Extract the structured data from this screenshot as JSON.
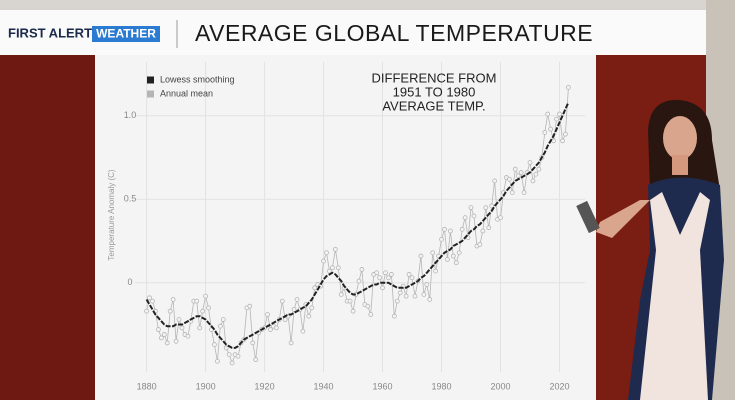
{
  "logo": {
    "first": "FIRST ALERT",
    "second": "WEATHER"
  },
  "chart_data": {
    "type": "line",
    "title": "AVERAGE GLOBAL TEMPERATURE",
    "annotation": [
      "DIFFERENCE FROM",
      "1951 TO 1980",
      "AVERAGE TEMP."
    ],
    "y_label": "Temperature Anomaly (C)",
    "xlim": [
      1872,
      2030
    ],
    "xticks": [
      1880,
      1900,
      1920,
      1940,
      1960,
      1980,
      2000,
      2020
    ],
    "ylim": [
      -0.6,
      1.25
    ],
    "yticks": [
      0,
      0.5,
      {
        "value": 1,
        "label": "1.0"
      }
    ],
    "grid": true,
    "legend": "top-left",
    "x": [
      1880,
      1881,
      1882,
      1883,
      1884,
      1885,
      1886,
      1887,
      1888,
      1889,
      1890,
      1891,
      1892,
      1893,
      1894,
      1895,
      1896,
      1897,
      1898,
      1899,
      1900,
      1901,
      1902,
      1903,
      1904,
      1905,
      1906,
      1907,
      1908,
      1909,
      1910,
      1911,
      1912,
      1913,
      1914,
      1915,
      1916,
      1917,
      1918,
      1919,
      1920,
      1921,
      1922,
      1923,
      1924,
      1925,
      1926,
      1927,
      1928,
      1929,
      1930,
      1931,
      1932,
      1933,
      1934,
      1935,
      1936,
      1937,
      1938,
      1939,
      1940,
      1941,
      1942,
      1943,
      1944,
      1945,
      1946,
      1947,
      1948,
      1949,
      1950,
      1951,
      1952,
      1953,
      1954,
      1955,
      1956,
      1957,
      1958,
      1959,
      1960,
      1961,
      1962,
      1963,
      1964,
      1965,
      1966,
      1967,
      1968,
      1969,
      1970,
      1971,
      1972,
      1973,
      1974,
      1975,
      1976,
      1977,
      1978,
      1979,
      1980,
      1981,
      1982,
      1983,
      1984,
      1985,
      1986,
      1987,
      1988,
      1989,
      1990,
      1991,
      1992,
      1993,
      1994,
      1995,
      1996,
      1997,
      1998,
      1999,
      2000,
      2001,
      2002,
      2003,
      2004,
      2005,
      2006,
      2007,
      2008,
      2009,
      2010,
      2011,
      2012,
      2013,
      2014,
      2015,
      2016,
      2017,
      2018,
      2019,
      2020,
      2021,
      2022,
      2023
    ],
    "series": [
      {
        "name": "Lowess smoothing",
        "color": "#222222",
        "values": [
          -0.1,
          -0.13,
          -0.16,
          -0.19,
          -0.21,
          -0.23,
          -0.25,
          -0.26,
          -0.26,
          -0.26,
          -0.25,
          -0.25,
          -0.25,
          -0.24,
          -0.23,
          -0.22,
          -0.21,
          -0.2,
          -0.2,
          -0.21,
          -0.22,
          -0.24,
          -0.26,
          -0.28,
          -0.31,
          -0.33,
          -0.35,
          -0.37,
          -0.38,
          -0.39,
          -0.39,
          -0.38,
          -0.36,
          -0.34,
          -0.33,
          -0.32,
          -0.31,
          -0.3,
          -0.29,
          -0.28,
          -0.27,
          -0.26,
          -0.25,
          -0.24,
          -0.23,
          -0.22,
          -0.21,
          -0.2,
          -0.19,
          -0.19,
          -0.18,
          -0.17,
          -0.16,
          -0.15,
          -0.14,
          -0.12,
          -0.1,
          -0.07,
          -0.04,
          -0.01,
          0.02,
          0.04,
          0.05,
          0.06,
          0.05,
          0.03,
          0.01,
          -0.02,
          -0.04,
          -0.06,
          -0.07,
          -0.07,
          -0.06,
          -0.05,
          -0.04,
          -0.03,
          -0.02,
          -0.01,
          -0.01,
          0.0,
          0.0,
          0.0,
          0.0,
          -0.01,
          -0.02,
          -0.03,
          -0.03,
          -0.03,
          -0.03,
          -0.02,
          -0.01,
          0.0,
          0.01,
          0.03,
          0.04,
          0.06,
          0.08,
          0.1,
          0.12,
          0.14,
          0.16,
          0.18,
          0.19,
          0.2,
          0.22,
          0.23,
          0.24,
          0.25,
          0.27,
          0.29,
          0.31,
          0.32,
          0.34,
          0.35,
          0.37,
          0.39,
          0.41,
          0.43,
          0.46,
          0.48,
          0.5,
          0.52,
          0.55,
          0.57,
          0.59,
          0.61,
          0.62,
          0.63,
          0.64,
          0.65,
          0.66,
          0.68,
          0.7,
          0.72,
          0.75,
          0.78,
          0.82,
          0.85,
          0.88,
          0.92,
          0.96,
          1.0,
          1.04,
          1.08
        ]
      },
      {
        "name": "Annual mean",
        "color": "#b5b5b5",
        "values": [
          -0.17,
          -0.09,
          -0.11,
          -0.17,
          -0.28,
          -0.33,
          -0.31,
          -0.36,
          -0.17,
          -0.1,
          -0.35,
          -0.22,
          -0.27,
          -0.31,
          -0.32,
          -0.23,
          -0.11,
          -0.11,
          -0.27,
          -0.17,
          -0.08,
          -0.15,
          -0.28,
          -0.37,
          -0.47,
          -0.26,
          -0.22,
          -0.39,
          -0.43,
          -0.48,
          -0.43,
          -0.44,
          -0.36,
          -0.34,
          -0.15,
          -0.14,
          -0.36,
          -0.46,
          -0.3,
          -0.28,
          -0.27,
          -0.19,
          -0.28,
          -0.26,
          -0.27,
          -0.22,
          -0.11,
          -0.22,
          -0.2,
          -0.36,
          -0.16,
          -0.1,
          -0.16,
          -0.29,
          -0.13,
          -0.2,
          -0.15,
          -0.03,
          -0.01,
          -0.02,
          0.13,
          0.18,
          0.07,
          0.09,
          0.2,
          0.09,
          -0.07,
          -0.03,
          -0.11,
          -0.11,
          -0.17,
          -0.07,
          0.01,
          0.08,
          -0.13,
          -0.14,
          -0.19,
          0.05,
          0.06,
          0.03,
          -0.03,
          0.06,
          0.03,
          0.05,
          -0.2,
          -0.11,
          -0.06,
          -0.02,
          -0.08,
          0.05,
          0.03,
          -0.08,
          0.01,
          0.16,
          -0.07,
          -0.01,
          -0.1,
          0.18,
          0.07,
          0.16,
          0.26,
          0.32,
          0.14,
          0.31,
          0.16,
          0.12,
          0.18,
          0.32,
          0.39,
          0.27,
          0.45,
          0.4,
          0.22,
          0.23,
          0.31,
          0.45,
          0.33,
          0.46,
          0.61,
          0.38,
          0.39,
          0.54,
          0.63,
          0.62,
          0.54,
          0.68,
          0.64,
          0.66,
          0.54,
          0.66,
          0.72,
          0.61,
          0.65,
          0.68,
          0.75,
          0.9,
          1.01,
          0.92,
          0.85,
          0.98,
          1.01,
          0.85,
          0.89,
          1.17
        ]
      }
    ]
  }
}
